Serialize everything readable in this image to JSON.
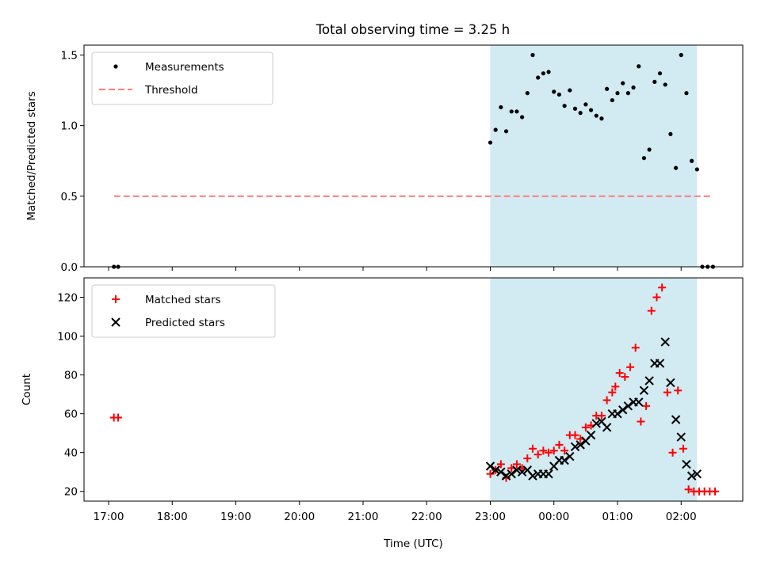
{
  "title": "Total observing time = 3.25 h",
  "colors": {
    "shade": "#add8e6",
    "threshold": "#ff7f7f",
    "measurement": "#000000",
    "matched": "#ff0000",
    "predicted": "#000000"
  },
  "chart_data": [
    {
      "type": "scatter",
      "title": "Total observing time = 3.25 h",
      "xlabel": "",
      "ylabel": "Matched/Predicted stars",
      "ylim": [
        0,
        1.57
      ],
      "yticks": [
        0.0,
        0.5,
        1.0,
        1.5
      ],
      "ytick_labels": [
        "0.0",
        "0.5",
        "1.0",
        "1.5"
      ],
      "legend": "top-left",
      "shaded_span": [
        "23:00",
        "02:15"
      ],
      "series": [
        {
          "name": "Measurements",
          "marker": "dot",
          "points": [
            [
              "17:05",
              0.0
            ],
            [
              "17:09",
              0.0
            ],
            [
              "23:00",
              0.88
            ],
            [
              "23:05",
              0.97
            ],
            [
              "23:10",
              1.13
            ],
            [
              "23:15",
              0.96
            ],
            [
              "23:20",
              1.1
            ],
            [
              "23:25",
              1.1
            ],
            [
              "23:30",
              1.06
            ],
            [
              "23:35",
              1.23
            ],
            [
              "23:40",
              1.5
            ],
            [
              "23:45",
              1.34
            ],
            [
              "23:50",
              1.37
            ],
            [
              "23:55",
              1.38
            ],
            [
              "00:00",
              1.24
            ],
            [
              "00:05",
              1.22
            ],
            [
              "00:10",
              1.14
            ],
            [
              "00:15",
              1.25
            ],
            [
              "00:20",
              1.12
            ],
            [
              "00:25",
              1.09
            ],
            [
              "00:30",
              1.15
            ],
            [
              "00:35",
              1.11
            ],
            [
              "00:40",
              1.07
            ],
            [
              "00:45",
              1.05
            ],
            [
              "00:50",
              1.26
            ],
            [
              "00:55",
              1.18
            ],
            [
              "01:00",
              1.23
            ],
            [
              "01:05",
              1.3
            ],
            [
              "01:10",
              1.23
            ],
            [
              "01:15",
              1.27
            ],
            [
              "01:20",
              1.42
            ],
            [
              "01:25",
              0.77
            ],
            [
              "01:30",
              0.83
            ],
            [
              "01:35",
              1.31
            ],
            [
              "01:40",
              1.37
            ],
            [
              "01:45",
              1.29
            ],
            [
              "01:50",
              0.94
            ],
            [
              "01:55",
              0.7
            ],
            [
              "02:00",
              1.5
            ],
            [
              "02:05",
              1.23
            ],
            [
              "02:10",
              0.75
            ],
            [
              "02:15",
              0.69
            ],
            [
              "02:20",
              0.0
            ],
            [
              "02:25",
              0.0
            ],
            [
              "02:30",
              0.0
            ]
          ]
        },
        {
          "name": "Threshold",
          "marker": "dashed-line",
          "points": [
            [
              "17:05",
              0.5
            ],
            [
              "02:30",
              0.5
            ]
          ]
        }
      ]
    },
    {
      "type": "scatter",
      "title": "",
      "xlabel": "Time (UTC)",
      "ylabel": "Count",
      "ylim": [
        15,
        130
      ],
      "yticks": [
        20,
        40,
        60,
        80,
        100,
        120
      ],
      "ytick_labels": [
        "20",
        "40",
        "60",
        "80",
        "100",
        "120"
      ],
      "xticks": [
        "17:00",
        "18:00",
        "19:00",
        "20:00",
        "21:00",
        "22:00",
        "23:00",
        "00:00",
        "01:00",
        "02:00"
      ],
      "legend": "top-left",
      "shaded_span": [
        "23:00",
        "02:15"
      ],
      "series": [
        {
          "name": "Matched stars",
          "marker": "plus",
          "points": [
            [
              "17:05",
              58
            ],
            [
              "17:09",
              58
            ],
            [
              "23:00",
              29
            ],
            [
              "23:05",
              31
            ],
            [
              "23:10",
              34
            ],
            [
              "23:15",
              27
            ],
            [
              "23:20",
              32
            ],
            [
              "23:25",
              34
            ],
            [
              "23:30",
              32
            ],
            [
              "23:35",
              37
            ],
            [
              "23:40",
              42
            ],
            [
              "23:45",
              39
            ],
            [
              "23:50",
              41
            ],
            [
              "23:55",
              40
            ],
            [
              "00:00",
              41
            ],
            [
              "00:05",
              44
            ],
            [
              "00:10",
              41
            ],
            [
              "00:15",
              49
            ],
            [
              "00:20",
              49
            ],
            [
              "00:25",
              47
            ],
            [
              "00:30",
              53
            ],
            [
              "00:35",
              54
            ],
            [
              "00:40",
              59
            ],
            [
              "00:45",
              59
            ],
            [
              "00:50",
              67
            ],
            [
              "00:55",
              71
            ],
            [
              "00:58",
              74
            ],
            [
              "01:02",
              81
            ],
            [
              "01:07",
              79
            ],
            [
              "01:12",
              84
            ],
            [
              "01:17",
              94
            ],
            [
              "01:22",
              56
            ],
            [
              "01:27",
              64
            ],
            [
              "01:32",
              113
            ],
            [
              "01:37",
              120
            ],
            [
              "01:42",
              125
            ],
            [
              "01:47",
              71
            ],
            [
              "01:52",
              40
            ],
            [
              "01:57",
              72
            ],
            [
              "02:02",
              42
            ],
            [
              "02:07",
              21
            ],
            [
              "02:12",
              20
            ],
            [
              "02:17",
              20
            ],
            [
              "02:22",
              20
            ],
            [
              "02:27",
              20
            ],
            [
              "02:32",
              20
            ]
          ]
        },
        {
          "name": "Predicted stars",
          "marker": "x",
          "points": [
            [
              "23:00",
              33
            ],
            [
              "23:05",
              31
            ],
            [
              "23:10",
              30
            ],
            [
              "23:15",
              28
            ],
            [
              "23:20",
              29
            ],
            [
              "23:25",
              31
            ],
            [
              "23:30",
              30
            ],
            [
              "23:35",
              31
            ],
            [
              "23:40",
              28
            ],
            [
              "23:45",
              29
            ],
            [
              "23:50",
              29
            ],
            [
              "23:55",
              29
            ],
            [
              "00:00",
              33
            ],
            [
              "00:05",
              36
            ],
            [
              "00:10",
              36
            ],
            [
              "00:15",
              38
            ],
            [
              "00:20",
              43
            ],
            [
              "00:25",
              44
            ],
            [
              "00:30",
              46
            ],
            [
              "00:35",
              49
            ],
            [
              "00:40",
              55
            ],
            [
              "00:45",
              56
            ],
            [
              "00:50",
              53
            ],
            [
              "00:55",
              60
            ],
            [
              "01:00",
              60
            ],
            [
              "01:05",
              62
            ],
            [
              "01:10",
              64
            ],
            [
              "01:15",
              66
            ],
            [
              "01:20",
              66
            ],
            [
              "01:25",
              72
            ],
            [
              "01:30",
              77
            ],
            [
              "01:35",
              86
            ],
            [
              "01:40",
              86
            ],
            [
              "01:45",
              97
            ],
            [
              "01:50",
              76
            ],
            [
              "01:55",
              57
            ],
            [
              "02:00",
              48
            ],
            [
              "02:05",
              34
            ],
            [
              "02:10",
              28
            ],
            [
              "02:15",
              29
            ]
          ]
        }
      ]
    }
  ]
}
